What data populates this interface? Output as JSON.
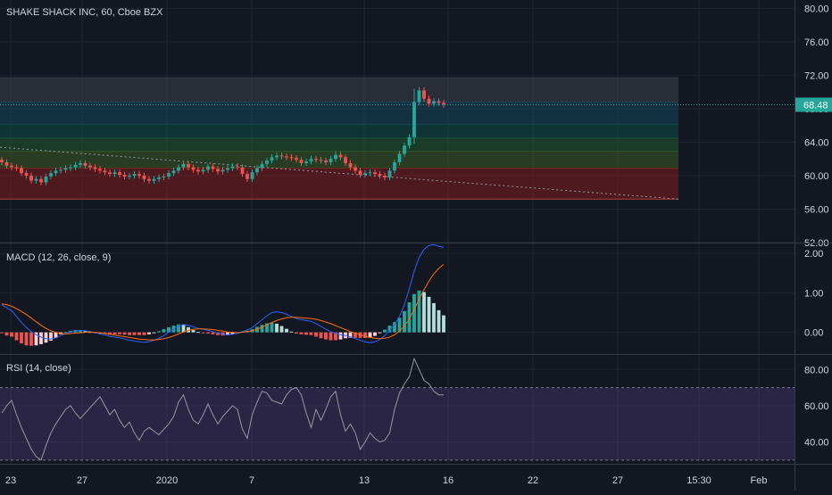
{
  "symbol_title": "SHAKE SHACK INC, 60, Cboe BZX",
  "macd_label": "MACD (12, 26, close, 9)",
  "rsi_label": "RSI (14, close)",
  "last_price": "68.48",
  "colors": {
    "background": "#131722",
    "grid": "#1f2430",
    "separator": "#363a45",
    "up": "#26a69a",
    "down": "#ef5350",
    "macd_line": "#2962ff",
    "signal_line": "#ff6d00",
    "rsi_line": "#9598a1",
    "rsi_band": "#7e57c2",
    "text": "#d1d4dc"
  },
  "chart_data": [
    {
      "type": "candlestick",
      "title": "SHAKE SHACK INC, 60, Cboe BZX",
      "yticks": [
        "52.00",
        "56.00",
        "60.00",
        "64.00",
        "68.00",
        "72.00",
        "76.00",
        "80.00"
      ],
      "ylim": [
        52,
        81
      ],
      "last_value": 68.48,
      "fib_zones": [
        {
          "from": 57.2,
          "to": 60.9,
          "color": "#7f1d1d"
        },
        {
          "from": 60.9,
          "to": 62.9,
          "color": "#3b5a24"
        },
        {
          "from": 62.9,
          "to": 64.5,
          "color": "#1f5a2e"
        },
        {
          "from": 64.5,
          "to": 66.1,
          "color": "#0f4a46"
        },
        {
          "from": 66.1,
          "to": 68.8,
          "color": "#16475f"
        },
        {
          "from": 68.8,
          "to": 71.7,
          "color": "#3a3f4b"
        }
      ],
      "trend_line": [
        {
          "x": 0,
          "y": 63.4
        },
        {
          "x": 1.0,
          "y": 57.2
        }
      ],
      "closes": [
        61.6,
        61.2,
        61.0,
        60.9,
        60.3,
        60.0,
        59.4,
        59.6,
        59.2,
        59.9,
        60.3,
        60.6,
        60.7,
        60.9,
        61.0,
        61.3,
        61.5,
        61.2,
        61.0,
        60.8,
        60.6,
        60.4,
        60.2,
        60.4,
        60.1,
        59.9,
        60.0,
        60.2,
        60.0,
        59.6,
        59.4,
        59.6,
        59.8,
        59.9,
        60.3,
        60.6,
        61.0,
        61.4,
        61.0,
        60.7,
        60.5,
        60.7,
        61.1,
        60.8,
        60.5,
        60.7,
        60.9,
        61.1,
        61.0,
        60.2,
        59.6,
        60.4,
        60.9,
        61.4,
        61.8,
        62.2,
        62.4,
        62.3,
        62.2,
        62.1,
        61.9,
        61.5,
        61.7,
        62.0,
        61.9,
        61.8,
        61.6,
        62.0,
        62.5,
        62.2,
        61.5,
        61.0,
        60.6,
        60.1,
        60.3,
        60.4,
        60.2,
        60.0,
        59.8,
        60.6,
        61.6,
        62.6,
        63.6,
        64.6,
        68.8,
        70.2,
        69.2,
        68.6,
        68.9,
        68.7,
        68.5
      ],
      "x_labels": [
        "23",
        "27",
        "2020",
        "7",
        "13",
        "16",
        "22",
        "27",
        "15:30",
        "Feb"
      ]
    },
    {
      "type": "histogram",
      "title": "MACD (12, 26, close, 9)",
      "yticks": [
        "0.00",
        "1.00",
        "2.00"
      ],
      "ylim": [
        -0.55,
        2.25
      ],
      "macd_line": [
        0.7,
        0.62,
        0.55,
        0.4,
        0.25,
        0.12,
        0.02,
        -0.06,
        -0.12,
        -0.16,
        -0.17,
        -0.14,
        -0.08,
        -0.03,
        0.01,
        0.04,
        0.05,
        0.04,
        0.02,
        -0.01,
        -0.04,
        -0.07,
        -0.1,
        -0.12,
        -0.14,
        -0.17,
        -0.2,
        -0.22,
        -0.24,
        -0.25,
        -0.24,
        -0.2,
        -0.15,
        -0.08,
        0.0,
        0.08,
        0.16,
        0.2,
        0.18,
        0.14,
        0.1,
        0.08,
        0.05,
        0.02,
        -0.02,
        -0.05,
        -0.06,
        -0.05,
        -0.02,
        0.02,
        0.06,
        0.12,
        0.22,
        0.32,
        0.42,
        0.5,
        0.52,
        0.5,
        0.46,
        0.4,
        0.35,
        0.32,
        0.3,
        0.28,
        0.22,
        0.15,
        0.08,
        0.02,
        -0.03,
        -0.06,
        -0.08,
        -0.12,
        -0.16,
        -0.2,
        -0.24,
        -0.26,
        -0.24,
        -0.18,
        -0.08,
        0.05,
        0.2,
        0.4,
        0.7,
        1.1,
        1.55,
        1.9,
        2.1,
        2.2,
        2.22,
        2.18,
        2.15
      ],
      "signal_line": [
        0.72,
        0.7,
        0.66,
        0.6,
        0.53,
        0.45,
        0.36,
        0.27,
        0.18,
        0.1,
        0.04,
        0.0,
        -0.03,
        -0.04,
        -0.03,
        -0.02,
        -0.01,
        0.0,
        0.01,
        0.0,
        -0.01,
        -0.03,
        -0.05,
        -0.07,
        -0.09,
        -0.11,
        -0.13,
        -0.15,
        -0.17,
        -0.18,
        -0.19,
        -0.19,
        -0.18,
        -0.16,
        -0.13,
        -0.09,
        -0.04,
        0.01,
        0.05,
        0.08,
        0.09,
        0.09,
        0.08,
        0.07,
        0.05,
        0.03,
        0.01,
        0.0,
        -0.01,
        0.0,
        0.02,
        0.04,
        0.08,
        0.13,
        0.19,
        0.25,
        0.3,
        0.34,
        0.37,
        0.38,
        0.38,
        0.37,
        0.36,
        0.35,
        0.33,
        0.3,
        0.26,
        0.22,
        0.17,
        0.12,
        0.07,
        0.02,
        -0.02,
        -0.06,
        -0.1,
        -0.13,
        -0.15,
        -0.16,
        -0.15,
        -0.12,
        -0.06,
        0.03,
        0.16,
        0.34,
        0.58,
        0.84,
        1.08,
        1.3,
        1.48,
        1.62,
        1.72
      ],
      "histogram": [
        -0.02,
        -0.08,
        -0.11,
        -0.2,
        -0.28,
        -0.33,
        -0.34,
        -0.33,
        -0.3,
        -0.26,
        -0.21,
        -0.14,
        -0.05,
        0.01,
        0.04,
        0.06,
        0.06,
        0.04,
        0.01,
        -0.01,
        -0.03,
        -0.04,
        -0.05,
        -0.05,
        -0.05,
        -0.06,
        -0.07,
        -0.07,
        -0.07,
        -0.07,
        -0.05,
        -0.01,
        0.03,
        0.08,
        0.13,
        0.17,
        0.2,
        0.19,
        0.13,
        0.06,
        0.01,
        -0.01,
        -0.03,
        -0.05,
        -0.07,
        -0.08,
        -0.07,
        -0.05,
        -0.01,
        0.02,
        0.04,
        0.08,
        0.14,
        0.19,
        0.23,
        0.25,
        0.22,
        0.16,
        0.09,
        0.02,
        -0.03,
        -0.05,
        -0.06,
        -0.07,
        -0.11,
        -0.15,
        -0.18,
        -0.2,
        -0.2,
        -0.18,
        -0.15,
        -0.14,
        -0.14,
        -0.14,
        -0.14,
        -0.13,
        -0.09,
        -0.02,
        0.07,
        0.17,
        0.26,
        0.37,
        0.54,
        0.76,
        0.97,
        1.06,
        1.02,
        0.9,
        0.74,
        0.56,
        0.43
      ]
    },
    {
      "type": "line",
      "title": "RSI (14, close)",
      "yticks": [
        "40.00",
        "60.00",
        "80.00"
      ],
      "ylim": [
        28,
        88
      ],
      "band": [
        30,
        70
      ],
      "values": [
        56,
        60,
        63,
        55,
        48,
        42,
        36,
        32,
        30,
        38,
        45,
        50,
        54,
        58,
        60,
        56,
        53,
        56,
        59,
        62,
        65,
        60,
        55,
        58,
        52,
        48,
        51,
        45,
        41,
        46,
        48,
        46,
        44,
        47,
        50,
        54,
        62,
        66,
        58,
        52,
        50,
        55,
        61,
        55,
        50,
        54,
        57,
        60,
        58,
        47,
        42,
        55,
        62,
        68,
        67,
        63,
        62,
        61,
        66,
        69,
        70,
        66,
        56,
        48,
        58,
        52,
        58,
        65,
        68,
        55,
        46,
        50,
        45,
        36,
        40,
        45,
        42,
        40,
        41,
        45,
        58,
        67,
        72,
        76,
        86,
        80,
        74,
        72,
        68,
        66,
        66
      ]
    }
  ]
}
